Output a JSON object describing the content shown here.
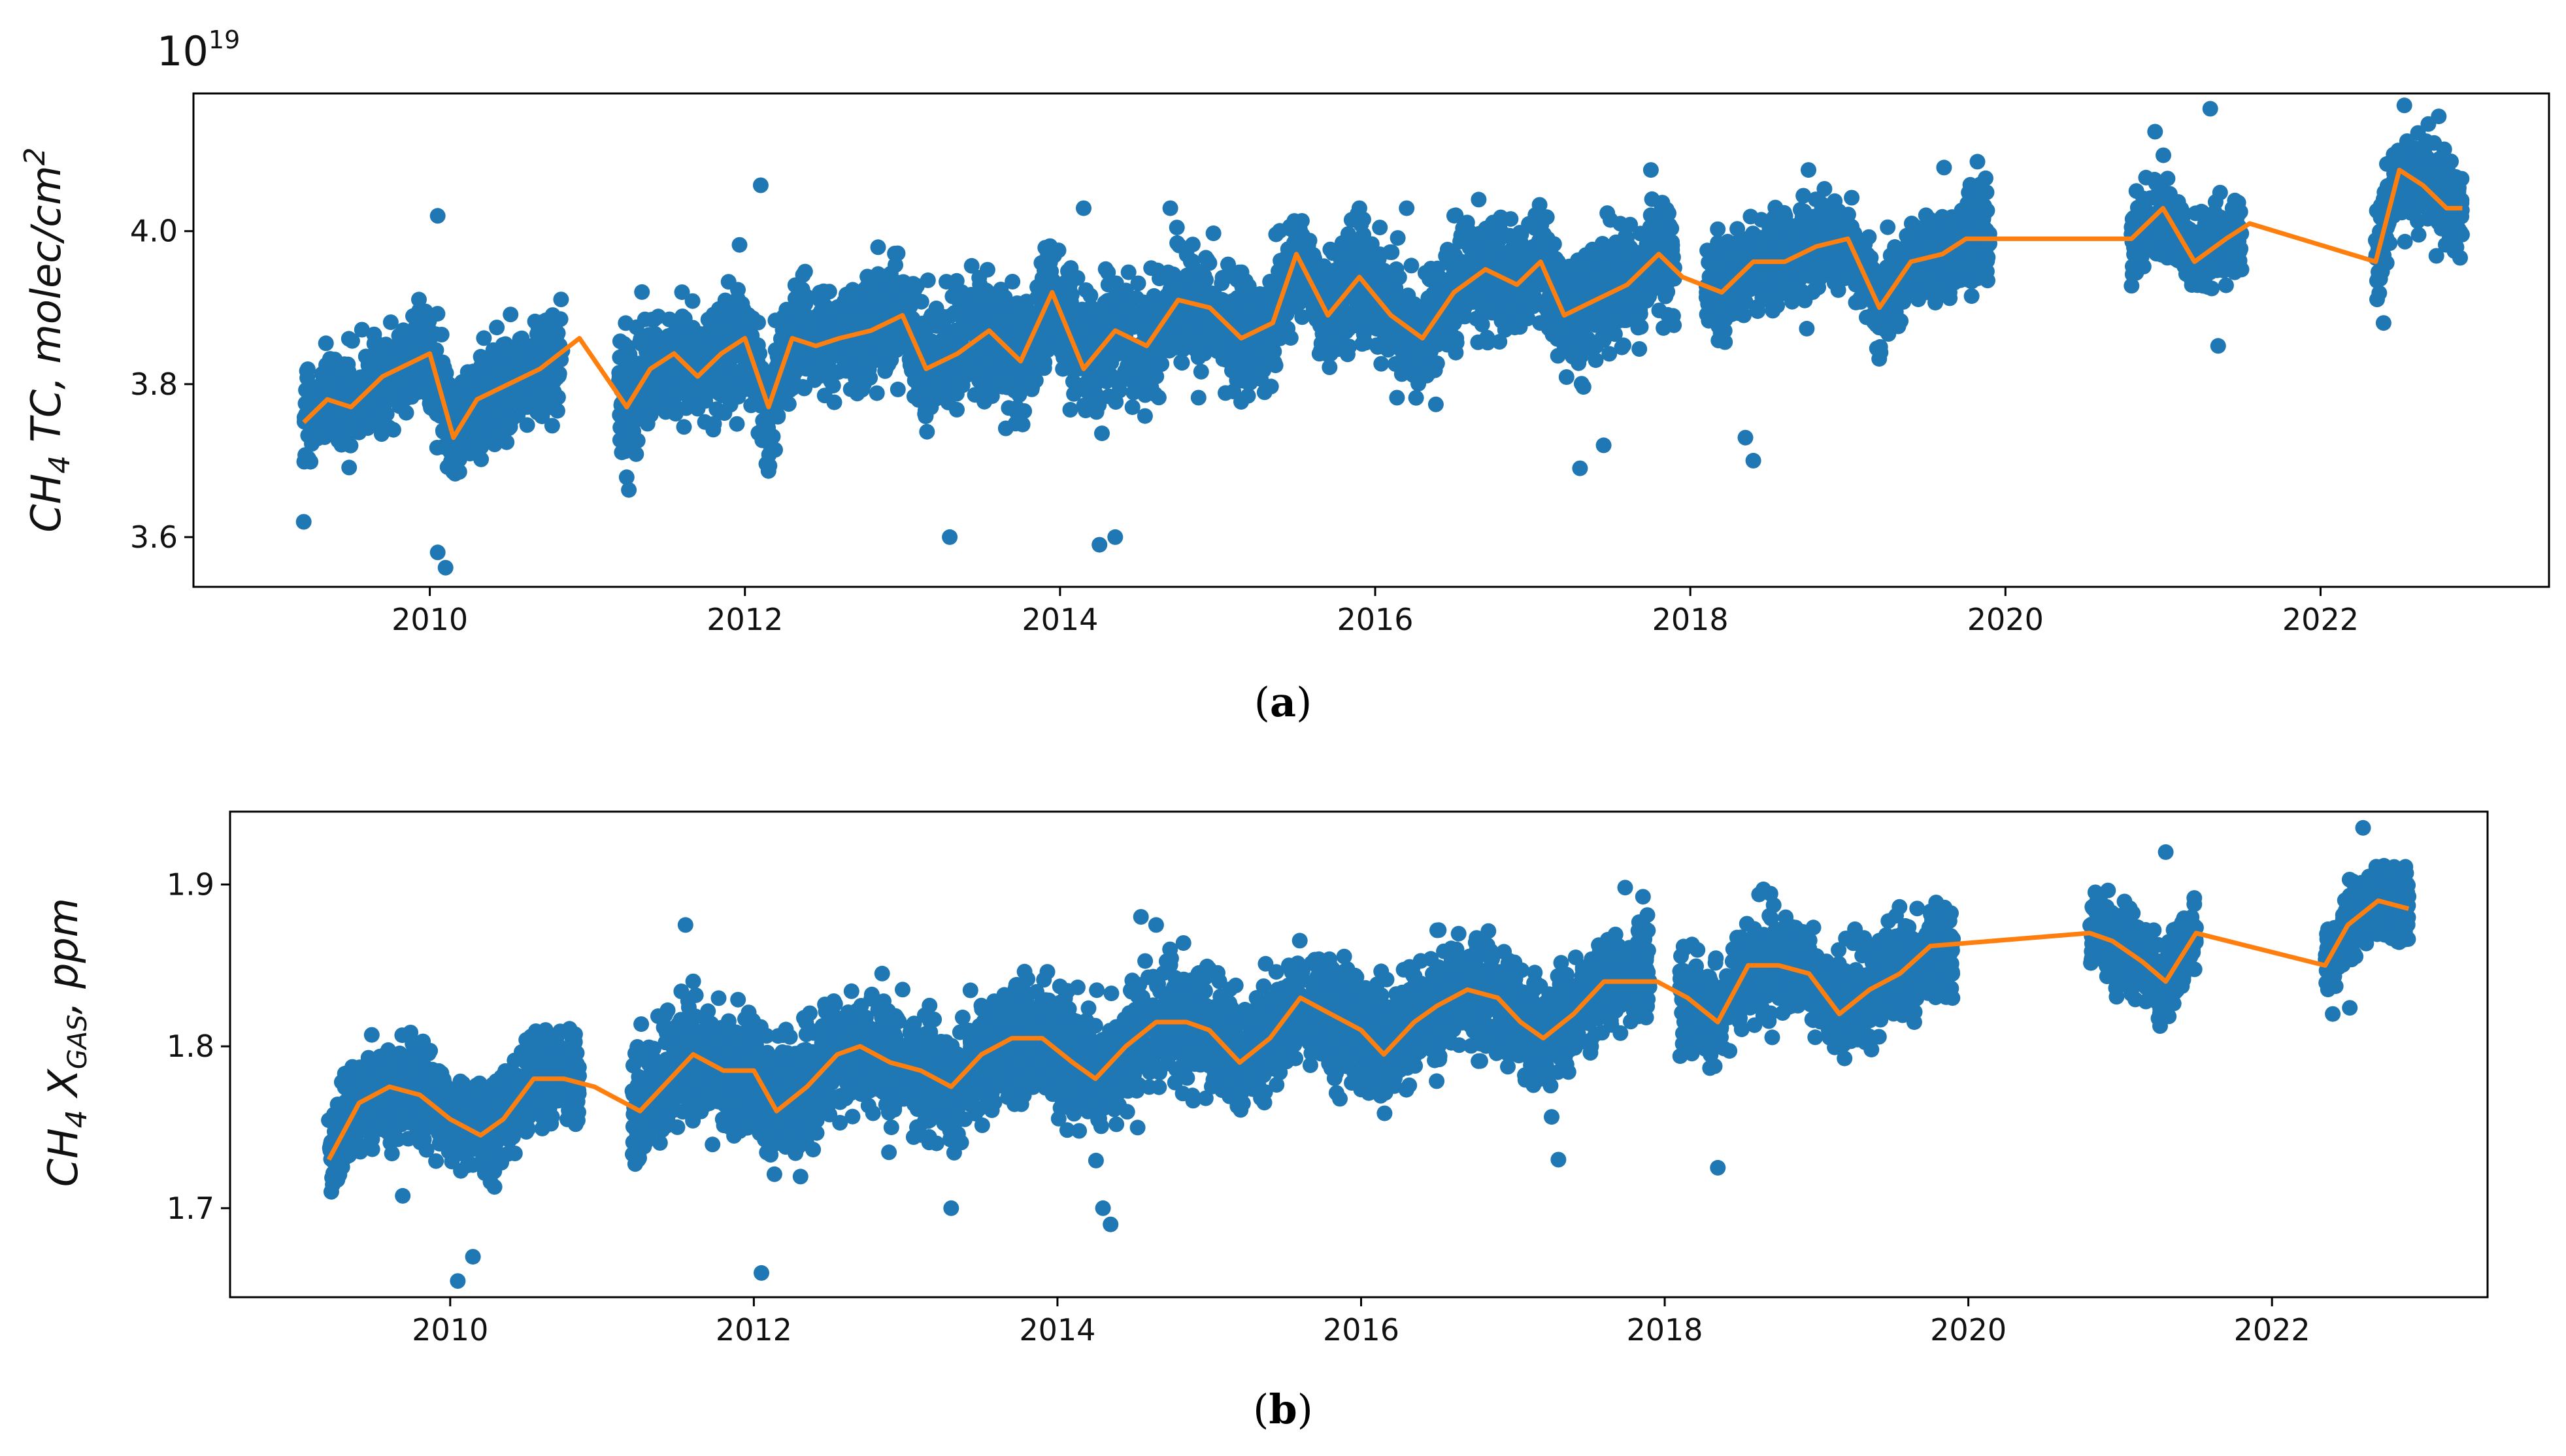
{
  "colors": {
    "scatter": "#1f77b4",
    "trend": "#ff7f0e",
    "axis": "#000000"
  },
  "chart_data": [
    {
      "type": "scatter",
      "panel_label": "a",
      "title": "",
      "xlabel": "",
      "ylabel": {
        "main": "CH",
        "sub": "4",
        "rest": " TC,  molec/cm",
        "sup": "2"
      },
      "y_exponent": {
        "base": "10",
        "power": "19"
      },
      "xlim": [
        2008.5,
        2023.45
      ],
      "ylim": [
        3.535,
        4.18
      ],
      "xticks": [
        2010,
        2012,
        2014,
        2016,
        2018,
        2020,
        2022
      ],
      "yticks": [
        3.6,
        3.8,
        4.0
      ],
      "ytick_labels": [
        "3.6",
        "3.8",
        "4.0"
      ],
      "series": [
        {
          "name": "daily observations",
          "kind": "scatter",
          "segments": [
            {
              "x0": 2009.2,
              "x1": 2010.85,
              "center": 3.8,
              "spread": 0.055
            },
            {
              "x0": 2011.2,
              "x1": 2013.1,
              "center": 3.83,
              "spread": 0.06
            },
            {
              "x0": 2013.1,
              "x1": 2015.1,
              "center": 3.85,
              "spread": 0.065
            },
            {
              "x0": 2015.1,
              "x1": 2016.9,
              "center": 3.89,
              "spread": 0.06
            },
            {
              "x0": 2016.9,
              "x1": 2017.9,
              "center": 3.92,
              "spread": 0.06
            },
            {
              "x0": 2018.1,
              "x1": 2019.9,
              "center": 3.95,
              "spread": 0.05
            },
            {
              "x0": 2020.8,
              "x1": 2021.5,
              "center": 3.99,
              "spread": 0.04
            },
            {
              "x0": 2022.35,
              "x1": 2022.9,
              "center": 4.02,
              "spread": 0.05
            }
          ],
          "points": [
            [
              2009.2,
              3.62
            ],
            [
              2010.05,
              3.58
            ],
            [
              2010.1,
              3.56
            ],
            [
              2010.05,
              4.02
            ],
            [
              2012.1,
              4.06
            ],
            [
              2013.3,
              3.6
            ],
            [
              2014.25,
              3.59
            ],
            [
              2014.35,
              3.6
            ],
            [
              2014.15,
              4.03
            ],
            [
              2014.7,
              4.03
            ],
            [
              2015.9,
              4.03
            ],
            [
              2016.2,
              4.03
            ],
            [
              2017.45,
              3.72
            ],
            [
              2017.3,
              3.69
            ],
            [
              2018.35,
              3.73
            ],
            [
              2018.4,
              3.7
            ],
            [
              2017.75,
              4.08
            ],
            [
              2018.75,
              4.08
            ],
            [
              2020.95,
              4.13
            ],
            [
              2021.3,
              4.16
            ],
            [
              2022.75,
              4.15
            ],
            [
              2022.4,
              3.88
            ],
            [
              2021.35,
              3.85
            ]
          ]
        },
        {
          "name": "smoothed trend",
          "kind": "line",
          "x": [
            2009.2,
            2009.35,
            2009.5,
            2009.7,
            2010.0,
            2010.15,
            2010.3,
            2010.5,
            2010.7,
            2010.95,
            2011.25,
            2011.4,
            2011.55,
            2011.7,
            2011.85,
            2012.0,
            2012.15,
            2012.3,
            2012.45,
            2012.6,
            2012.8,
            2013.0,
            2013.15,
            2013.35,
            2013.55,
            2013.75,
            2013.95,
            2014.15,
            2014.35,
            2014.55,
            2014.75,
            2014.95,
            2015.15,
            2015.35,
            2015.5,
            2015.7,
            2015.9,
            2016.1,
            2016.3,
            2016.5,
            2016.7,
            2016.9,
            2017.05,
            2017.2,
            2017.4,
            2017.6,
            2017.8,
            2017.95,
            2018.2,
            2018.4,
            2018.6,
            2018.8,
            2019.0,
            2019.2,
            2019.4,
            2019.6,
            2019.75,
            2020.8,
            2021.0,
            2021.2,
            2021.4,
            2021.55,
            2022.35,
            2022.5,
            2022.65,
            2022.8,
            2022.9
          ],
          "y": [
            3.75,
            3.78,
            3.77,
            3.81,
            3.84,
            3.73,
            3.78,
            3.8,
            3.82,
            3.86,
            3.77,
            3.82,
            3.84,
            3.81,
            3.84,
            3.86,
            3.77,
            3.86,
            3.85,
            3.86,
            3.87,
            3.89,
            3.82,
            3.84,
            3.87,
            3.83,
            3.92,
            3.82,
            3.87,
            3.85,
            3.91,
            3.9,
            3.86,
            3.88,
            3.97,
            3.89,
            3.94,
            3.89,
            3.86,
            3.92,
            3.95,
            3.93,
            3.96,
            3.89,
            3.91,
            3.93,
            3.97,
            3.94,
            3.92,
            3.96,
            3.96,
            3.98,
            3.99,
            3.9,
            3.96,
            3.97,
            3.99,
            3.99,
            4.03,
            3.96,
            3.99,
            4.01,
            3.96,
            4.08,
            4.06,
            4.03,
            4.03
          ]
        }
      ]
    },
    {
      "type": "scatter",
      "panel_label": "b",
      "title": "",
      "xlabel": "",
      "ylabel": {
        "main": "CH",
        "sub": "4",
        "rest": " X",
        "sub2": "GAS",
        "rest2": ",  ppm"
      },
      "xlim": [
        2008.55,
        2023.42
      ],
      "ylim": [
        1.645,
        1.945
      ],
      "xticks": [
        2010,
        2012,
        2014,
        2016,
        2018,
        2020,
        2022
      ],
      "yticks": [
        1.7,
        1.8,
        1.9
      ],
      "ytick_labels": [
        "1.7",
        "1.8",
        "1.9"
      ],
      "series": [
        {
          "name": "daily observations",
          "kind": "scatter",
          "segments": [
            {
              "x0": 2009.2,
              "x1": 2010.85,
              "center": 1.76,
              "spread": 0.025
            },
            {
              "x0": 2011.2,
              "x1": 2013.1,
              "center": 1.78,
              "spread": 0.03
            },
            {
              "x0": 2013.1,
              "x1": 2015.1,
              "center": 1.795,
              "spread": 0.03
            },
            {
              "x0": 2015.1,
              "x1": 2016.9,
              "center": 1.81,
              "spread": 0.028
            },
            {
              "x0": 2016.9,
              "x1": 2017.9,
              "center": 1.825,
              "spread": 0.026
            },
            {
              "x0": 2018.1,
              "x1": 2019.9,
              "center": 1.84,
              "spread": 0.025
            },
            {
              "x0": 2020.8,
              "x1": 2021.5,
              "center": 1.86,
              "spread": 0.02
            },
            {
              "x0": 2022.35,
              "x1": 2022.9,
              "center": 1.885,
              "spread": 0.02
            }
          ],
          "points": [
            [
              2010.05,
              1.655
            ],
            [
              2010.15,
              1.67
            ],
            [
              2012.05,
              1.66
            ],
            [
              2011.55,
              1.875
            ],
            [
              2014.55,
              1.88
            ],
            [
              2014.65,
              1.875
            ],
            [
              2013.3,
              1.7
            ],
            [
              2014.3,
              1.7
            ],
            [
              2014.35,
              1.69
            ],
            [
              2017.3,
              1.73
            ],
            [
              2018.35,
              1.725
            ],
            [
              2018.65,
              1.897
            ],
            [
              2021.3,
              1.92
            ],
            [
              2022.6,
              1.935
            ],
            [
              2022.4,
              1.82
            ]
          ]
        },
        {
          "name": "smoothed trend",
          "kind": "line",
          "x": [
            2009.2,
            2009.4,
            2009.6,
            2009.8,
            2010.0,
            2010.2,
            2010.35,
            2010.55,
            2010.75,
            2010.95,
            2011.25,
            2011.45,
            2011.6,
            2011.8,
            2012.0,
            2012.15,
            2012.35,
            2012.55,
            2012.7,
            2012.9,
            2013.1,
            2013.3,
            2013.5,
            2013.7,
            2013.9,
            2014.1,
            2014.25,
            2014.45,
            2014.65,
            2014.85,
            2015.0,
            2015.2,
            2015.4,
            2015.6,
            2015.8,
            2016.0,
            2016.15,
            2016.35,
            2016.5,
            2016.7,
            2016.9,
            2017.05,
            2017.2,
            2017.4,
            2017.6,
            2017.8,
            2017.95,
            2018.15,
            2018.35,
            2018.55,
            2018.75,
            2018.95,
            2019.15,
            2019.35,
            2019.55,
            2019.75,
            2020.8,
            2020.95,
            2021.15,
            2021.3,
            2021.5,
            2022.35,
            2022.5,
            2022.7,
            2022.9
          ],
          "y": [
            1.73,
            1.765,
            1.775,
            1.77,
            1.755,
            1.745,
            1.755,
            1.78,
            1.78,
            1.775,
            1.76,
            1.78,
            1.795,
            1.785,
            1.785,
            1.76,
            1.775,
            1.795,
            1.8,
            1.79,
            1.785,
            1.775,
            1.795,
            1.805,
            1.805,
            1.79,
            1.78,
            1.8,
            1.815,
            1.815,
            1.81,
            1.79,
            1.805,
            1.83,
            1.82,
            1.81,
            1.795,
            1.815,
            1.825,
            1.835,
            1.83,
            1.815,
            1.805,
            1.82,
            1.84,
            1.84,
            1.84,
            1.83,
            1.815,
            1.85,
            1.85,
            1.845,
            1.82,
            1.835,
            1.845,
            1.862,
            1.87,
            1.865,
            1.852,
            1.84,
            1.87,
            1.85,
            1.875,
            1.89,
            1.885
          ]
        }
      ]
    }
  ]
}
